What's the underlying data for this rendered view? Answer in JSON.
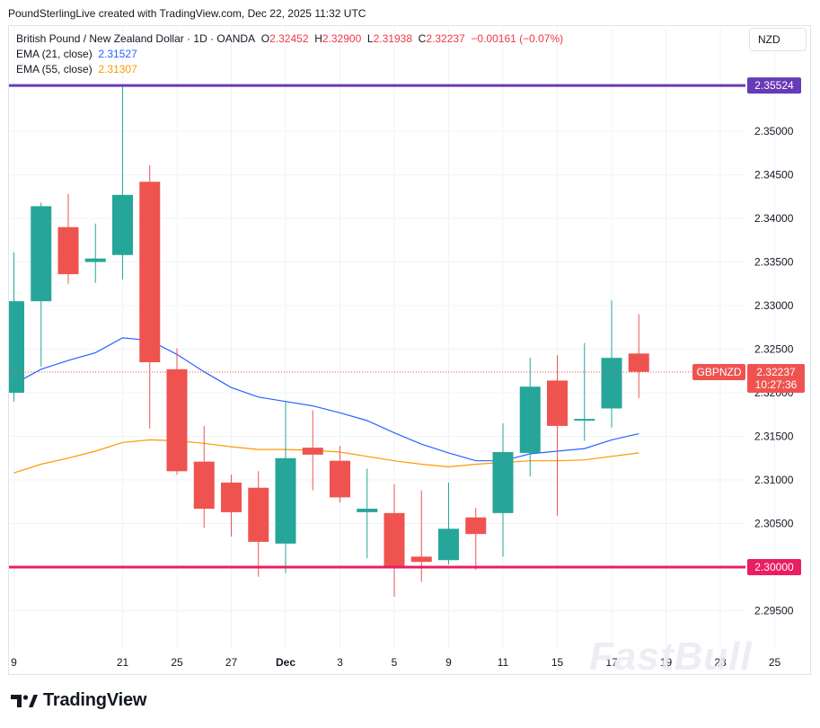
{
  "header": {
    "credit": "PoundSterlingLive created with TradingView.com, Dec 22, 2025 11:32 UTC"
  },
  "legend": {
    "symbol": "British Pound / New Zealand Dollar · 1D · OANDA",
    "o_label": "O",
    "o_value": "2.32452",
    "h_label": "H",
    "h_value": "2.32900",
    "l_label": "L",
    "l_value": "2.31938",
    "c_label": "C",
    "c_value": "2.32237",
    "change": "−0.00161 (−0.07%)",
    "ema21_label": "EMA (21, close)",
    "ema21_value": "2.31527",
    "ema55_label": "EMA (55, close)",
    "ema55_value": "2.31307"
  },
  "currency_button": "NZD",
  "footer": {
    "brand": "TradingView",
    "watermark": "FastBull"
  },
  "colors": {
    "up": "#26a69a",
    "down": "#ef5350",
    "ema21": "#2962ff",
    "ema55": "#ff9800",
    "resistance": "#673ab7",
    "support": "#e91e63",
    "grid": "#f0f3fa"
  },
  "chart_data": {
    "type": "candlestick",
    "symbol": "GBPNZD",
    "timeframe": "1D",
    "ylim": [
      2.2905,
      2.36
    ],
    "y_ticks": [
      "2.29500",
      "2.30000",
      "2.30500",
      "2.31000",
      "2.31500",
      "2.32000",
      "2.32500",
      "2.33000",
      "2.33500",
      "2.34000",
      "2.34500",
      "2.35000"
    ],
    "x_ticks": [
      {
        "i": 0,
        "label": "9"
      },
      {
        "i": 4,
        "label": "21"
      },
      {
        "i": 6,
        "label": "25"
      },
      {
        "i": 8,
        "label": "27"
      },
      {
        "i": 10,
        "label": "Dec"
      },
      {
        "i": 12,
        "label": "3"
      },
      {
        "i": 14,
        "label": "5"
      },
      {
        "i": 16,
        "label": "9"
      },
      {
        "i": 18,
        "label": "11"
      },
      {
        "i": 20,
        "label": "15"
      },
      {
        "i": 22,
        "label": "17"
      },
      {
        "i": 24,
        "label": "19"
      },
      {
        "i": 26,
        "label": "23"
      },
      {
        "i": 28,
        "label": "25"
      }
    ],
    "candles": [
      {
        "o": 2.32,
        "h": 2.3361,
        "l": 2.319,
        "c": 2.3305
      },
      {
        "o": 2.3305,
        "h": 2.3418,
        "l": 2.323,
        "c": 2.3414
      },
      {
        "o": 2.339,
        "h": 2.3428,
        "l": 2.3325,
        "c": 2.3336
      },
      {
        "o": 2.335,
        "h": 2.3394,
        "l": 2.3326,
        "c": 2.3354
      },
      {
        "o": 2.3358,
        "h": 2.3552,
        "l": 2.333,
        "c": 2.3427
      },
      {
        "o": 2.3442,
        "h": 2.3461,
        "l": 2.3159,
        "c": 2.3235
      },
      {
        "o": 2.3227,
        "h": 2.3251,
        "l": 2.3106,
        "c": 2.311
      },
      {
        "o": 2.3121,
        "h": 2.3162,
        "l": 2.3045,
        "c": 2.3067
      },
      {
        "o": 2.3097,
        "h": 2.3106,
        "l": 2.3035,
        "c": 2.3063
      },
      {
        "o": 2.3091,
        "h": 2.311,
        "l": 2.2989,
        "c": 2.3029
      },
      {
        "o": 2.3027,
        "h": 2.319,
        "l": 2.2993,
        "c": 2.3125
      },
      {
        "o": 2.3137,
        "h": 2.318,
        "l": 2.3088,
        "c": 2.3129
      },
      {
        "o": 2.3122,
        "h": 2.3139,
        "l": 2.3074,
        "c": 2.308
      },
      {
        "o": 2.3063,
        "h": 2.3113,
        "l": 2.301,
        "c": 2.3067
      },
      {
        "o": 2.3062,
        "h": 2.3095,
        "l": 2.2966,
        "c": 2.3
      },
      {
        "o": 2.3012,
        "h": 2.3088,
        "l": 2.2983,
        "c": 2.3006
      },
      {
        "o": 2.3008,
        "h": 2.3097,
        "l": 2.3003,
        "c": 2.3044
      },
      {
        "o": 2.3057,
        "h": 2.3068,
        "l": 2.2997,
        "c": 2.3038
      },
      {
        "o": 2.3062,
        "h": 2.3165,
        "l": 2.3012,
        "c": 2.3132
      },
      {
        "o": 2.3131,
        "h": 2.324,
        "l": 2.3104,
        "c": 2.3207
      },
      {
        "o": 2.3214,
        "h": 2.3243,
        "l": 2.3059,
        "c": 2.3162
      },
      {
        "o": 2.3168,
        "h": 2.3257,
        "l": 2.3145,
        "c": 2.317
      },
      {
        "o": 2.3182,
        "h": 2.3306,
        "l": 2.316,
        "c": 2.324
      },
      {
        "o": 2.3245,
        "h": 2.329,
        "l": 2.3194,
        "c": 2.3224
      }
    ],
    "ema21": [
      2.321,
      2.3227,
      2.3237,
      2.3246,
      2.3263,
      2.326,
      2.3244,
      2.3224,
      2.3206,
      2.3195,
      2.319,
      2.3185,
      2.3177,
      2.3168,
      2.3154,
      2.3141,
      2.3131,
      2.3122,
      2.3122,
      2.313,
      2.3133,
      2.3136,
      2.3146,
      2.3153
    ],
    "ema55": [
      2.3108,
      2.3118,
      2.3125,
      2.3133,
      2.3143,
      2.3146,
      2.3145,
      2.3142,
      2.3138,
      2.3135,
      2.3135,
      2.3134,
      2.3132,
      2.3127,
      2.3122,
      2.3118,
      2.3115,
      2.3118,
      2.312,
      2.3122,
      2.3122,
      2.3123,
      2.3127,
      2.3131
    ],
    "hlines": [
      {
        "name": "resistance",
        "value": 2.35524,
        "label": "2.35524"
      },
      {
        "name": "support",
        "value": 2.3,
        "label": "2.30000"
      }
    ],
    "last_price": {
      "symbol_label": "GBPNZD",
      "value": 2.32237,
      "label": "2.32237",
      "countdown": "10:27:36"
    }
  }
}
